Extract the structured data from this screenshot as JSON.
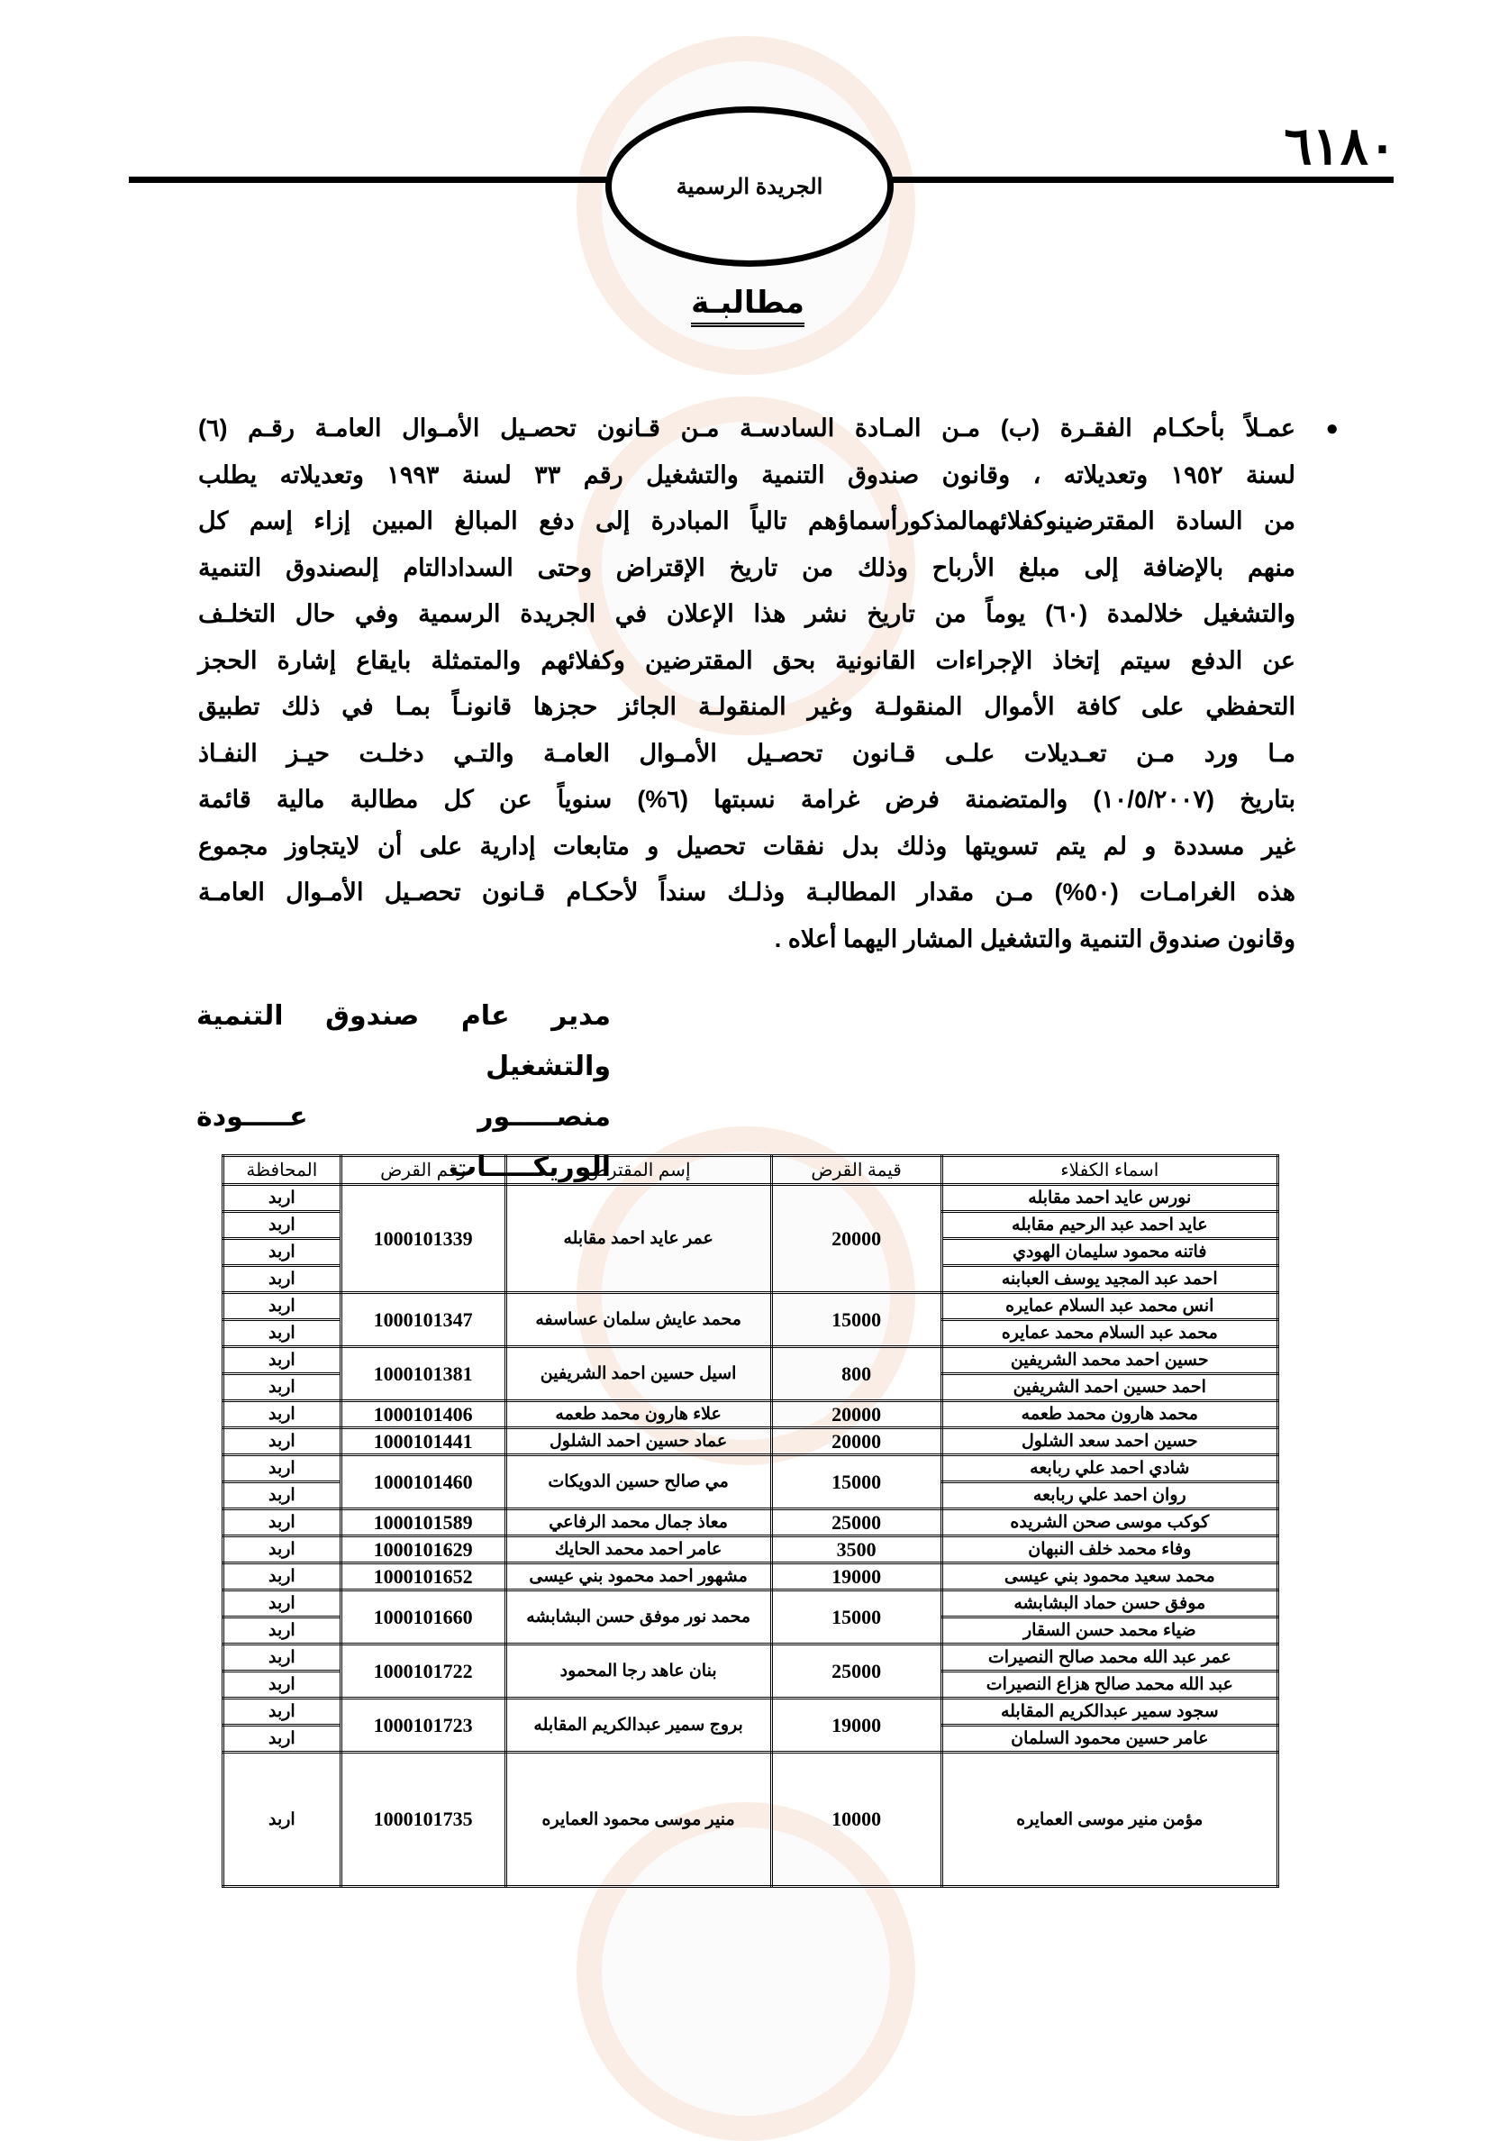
{
  "header": {
    "page_number": "٦١٨٠",
    "gazette_name": "الجريدة الرسمية"
  },
  "title": "مطالبـة",
  "notice": {
    "lines": [
      "عمـلاً بأحكـام الفقـرة (ب) مـن المـادة السادسـة مـن قـانون تحصـيل الأمـوال العامـة رقـم (٦)",
      "لسنة ١٩٥٢ وتعديلاته ، وقانون صندوق التنمية والتشغيل رقم ٣٣ لسنة ١٩٩٣ وتعديلاته يطلب",
      "من السادة المقترضينوكفلائهمالمذكورأسماؤهم تالياً المبادرة إلى دفع المبالغ المبين إزاء إسم كل",
      "منهم بالإضافة إلى مبلغ الأرباح وذلك من تاريخ الإقتراض وحتى السدادالتام إلىصندوق التنمية",
      "والتشغيل خلالمدة (٦٠) يوماً من تاريخ نشر هذا الإعلان في الجريدة الرسمية وفي حال التخلـف",
      "عن الدفع سيتم إتخاذ الإجراءات القانونية بحق المقترضين وكفلائهم والمتمثلة بايقاع إشارة الحجز",
      "التحفظي على كافة الأموال المنقولـة وغير المنقولـة الجائز حجزها قانونـاً بمـا في ذلك تطبيق",
      "مـا ورد مـن تعـديلات علـى قـانون تحصـيل الأمـوال العامـة والتـي دخلـت حيـز النفـاذ",
      "بتاريخ (١٠/٥/٢٠٠٧) والمتضمنة فرض غرامة نسبتها (٦%) سنوياً عن كل مطالبة مالية قائمة",
      "غير مسددة و لم يتم تسويتها وذلك بدل نفقات تحصيل و متابعات إدارية على أن لايتجاوز مجموع",
      "هذه الغرامـات (٥٠%) مـن مقدار المطالبـة وذلـك سنداً لأحكـام قـانون تحصـيل الأمـوال العامـة",
      "وقانون صندوق التنمية والتشغيل المشار اليهما أعلاه ."
    ]
  },
  "signature": {
    "position": "مدير عام صندوق التنمية والتشغيل",
    "name": "منصـــــور عـــــودة الوريكـــــات"
  },
  "table": {
    "headers": [
      "اسماء الكفلاء",
      "قيمة القرض",
      "إسم المقترض",
      "رقم القرض",
      "المحافظة"
    ],
    "loans": [
      {
        "amount": "20000",
        "borrower": "عمر عايد احمد مقابله",
        "loan_number": "1000101339",
        "guarantors": [
          {
            "name": "نورس عايد احمد مقابله",
            "governorate": "اربد"
          },
          {
            "name": "عايد احمد عبد الرحيم مقابله",
            "governorate": "اربد"
          },
          {
            "name": "فاتنه محمود سليمان الهودي",
            "governorate": "اربد"
          },
          {
            "name": "احمد عبد المجيد يوسف العبابنه",
            "governorate": "اربد"
          }
        ]
      },
      {
        "amount": "15000",
        "borrower": "محمد عايش سلمان عساسفه",
        "loan_number": "1000101347",
        "guarantors": [
          {
            "name": "انس محمد عبد السلام عمايره",
            "governorate": "اربد"
          },
          {
            "name": "محمد عبد السلام محمد عمايره",
            "governorate": "اربد"
          }
        ]
      },
      {
        "amount": "800",
        "borrower": "اسيل حسين احمد الشريفين",
        "loan_number": "1000101381",
        "guarantors": [
          {
            "name": "حسين احمد محمد الشريفين",
            "governorate": "اربد"
          },
          {
            "name": "احمد حسين احمد الشريفين",
            "governorate": "اربد"
          }
        ]
      },
      {
        "amount": "20000",
        "borrower": "علاء هارون محمد طعمه",
        "loan_number": "1000101406",
        "guarantors": [
          {
            "name": "محمد هارون محمد طعمه",
            "governorate": "اربد"
          }
        ]
      },
      {
        "amount": "20000",
        "borrower": "عماد حسين احمد الشلول",
        "loan_number": "1000101441",
        "guarantors": [
          {
            "name": "حسين احمد سعد الشلول",
            "governorate": "اربد"
          }
        ]
      },
      {
        "amount": "15000",
        "borrower": "مي صالح حسين الدويكات",
        "loan_number": "1000101460",
        "guarantors": [
          {
            "name": "شادي احمد علي ربابعه",
            "governorate": "اربد"
          },
          {
            "name": "روان احمد علي ربابعه",
            "governorate": "اربد"
          }
        ]
      },
      {
        "amount": "25000",
        "borrower": "معاذ جمال محمد الرفاعي",
        "loan_number": "1000101589",
        "guarantors": [
          {
            "name": "كوكب موسى صحن الشريده",
            "governorate": "اربد"
          }
        ]
      },
      {
        "amount": "3500",
        "borrower": "عامر احمد محمد الحايك",
        "loan_number": "1000101629",
        "guarantors": [
          {
            "name": "وفاء محمد خلف النبهان",
            "governorate": "اربد"
          }
        ]
      },
      {
        "amount": "19000",
        "borrower": "مشهور احمد محمود بني عيسى",
        "loan_number": "1000101652",
        "guarantors": [
          {
            "name": "محمد سعيد محمود بني عيسى",
            "governorate": "اربد"
          }
        ]
      },
      {
        "amount": "15000",
        "borrower": "محمد نور موفق حسن البشابشه",
        "loan_number": "1000101660",
        "guarantors": [
          {
            "name": "موفق حسن حماد البشابشه",
            "governorate": "اربد"
          },
          {
            "name": "ضياء محمد حسن السقار",
            "governorate": "اربد"
          }
        ]
      },
      {
        "amount": "25000",
        "borrower": "بنان عاهد رجا المحمود",
        "loan_number": "1000101722",
        "guarantors": [
          {
            "name": "عمر عبد الله محمد صالح النصيرات",
            "governorate": "اربد"
          },
          {
            "name": "عبد الله محمد صالح هزاع النصيرات",
            "governorate": "اربد"
          }
        ]
      },
      {
        "amount": "19000",
        "borrower": "بروج سمير عبدالكريم المقابله",
        "loan_number": "1000101723",
        "guarantors": [
          {
            "name": "سجود سمير عبدالكريم المقابله",
            "governorate": "اربد"
          },
          {
            "name": "عامر حسين محمود السلمان",
            "governorate": "اربد"
          }
        ]
      },
      {
        "amount": "10000",
        "borrower": "منير موسى محمود العمايره",
        "loan_number": "1000101735",
        "guarantors": [
          {
            "name": "مؤمن منير موسى العمايره",
            "governorate": "اربد"
          }
        ]
      }
    ]
  }
}
